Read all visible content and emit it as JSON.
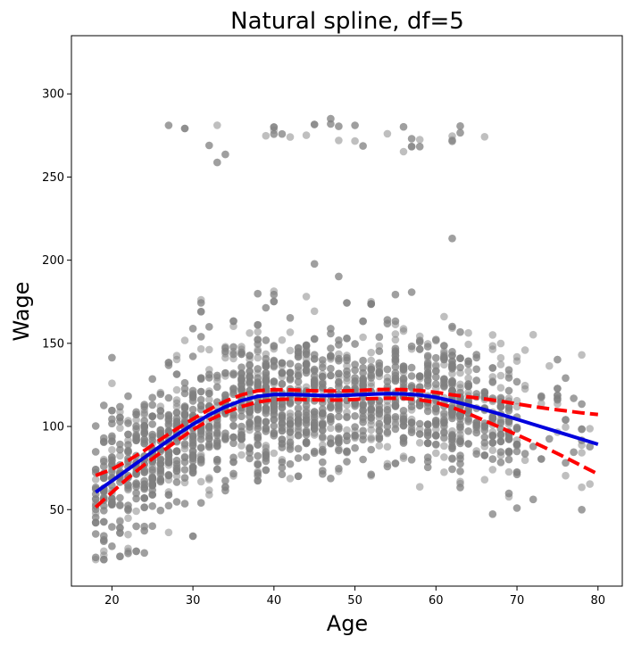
{
  "chart_data": {
    "type": "scatter",
    "title": "Natural spline, df=5",
    "xlabel": "Age",
    "ylabel": "Wage",
    "xlim": [
      15,
      83
    ],
    "ylim": [
      4,
      335
    ],
    "x_ticks": [
      20,
      30,
      40,
      50,
      60,
      70,
      80
    ],
    "y_ticks": [
      50,
      100,
      150,
      200,
      250,
      300
    ],
    "colors": {
      "points": "#808080",
      "fit": "#0000dd",
      "band": "#ff0000"
    },
    "point_count_approx": 3000,
    "fit": {
      "name": "fit",
      "x": [
        18,
        20,
        22,
        24,
        26,
        28,
        30,
        32,
        34,
        36,
        38,
        40,
        42,
        44,
        46,
        48,
        50,
        52,
        54,
        56,
        58,
        60,
        62,
        64,
        66,
        68,
        70,
        72,
        74,
        76,
        78,
        80
      ],
      "y": [
        60.5,
        67.3,
        74.3,
        81.3,
        88.2,
        95.0,
        101.3,
        107.0,
        111.8,
        115.6,
        118.1,
        119.2,
        119.3,
        118.9,
        118.6,
        118.6,
        119.0,
        119.4,
        119.7,
        119.6,
        118.9,
        117.5,
        115.3,
        112.8,
        110.1,
        107.3,
        104.3,
        101.3,
        98.3,
        95.3,
        92.3,
        89.3
      ]
    },
    "upper_band": {
      "name": "upper",
      "x": [
        18,
        20,
        22,
        24,
        26,
        28,
        30,
        32,
        34,
        36,
        38,
        40,
        42,
        44,
        46,
        48,
        50,
        52,
        54,
        56,
        58,
        60,
        62,
        64,
        66,
        68,
        70,
        72,
        74,
        76,
        78,
        80
      ],
      "y": [
        70.5,
        74.3,
        79.5,
        85.5,
        92.2,
        98.6,
        104.5,
        110.2,
        115.2,
        119.0,
        121.5,
        122.2,
        122.0,
        121.6,
        121.3,
        121.3,
        121.6,
        122.0,
        122.3,
        122.2,
        121.6,
        120.5,
        119.0,
        117.8,
        116.6,
        115.2,
        113.6,
        112.0,
        110.6,
        109.4,
        108.2,
        107.2
      ]
    },
    "lower_band": {
      "name": "lower",
      "x": [
        18,
        20,
        22,
        24,
        26,
        28,
        30,
        32,
        34,
        36,
        38,
        40,
        42,
        44,
        46,
        48,
        50,
        52,
        54,
        56,
        58,
        60,
        62,
        64,
        66,
        68,
        70,
        72,
        74,
        76,
        78,
        80
      ],
      "y": [
        51.5,
        60.4,
        69.1,
        77.0,
        84.2,
        91.3,
        98.1,
        103.8,
        108.4,
        112.0,
        114.7,
        116.1,
        116.5,
        116.1,
        115.9,
        115.9,
        116.3,
        116.8,
        117.0,
        116.9,
        116.0,
        114.4,
        111.5,
        107.7,
        103.5,
        99.3,
        95.0,
        90.6,
        86.1,
        81.3,
        76.3,
        71.4
      ]
    }
  }
}
